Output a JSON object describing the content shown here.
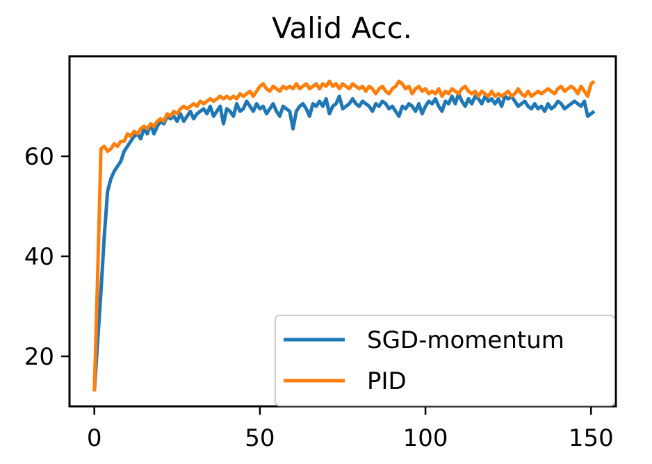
{
  "chart_data": {
    "type": "line",
    "title": "Valid Acc.",
    "xlabel": "",
    "ylabel": "",
    "xlim": [
      -7.5,
      157.5
    ],
    "ylim": [
      10,
      80
    ],
    "xticks": [
      0,
      50,
      100,
      150
    ],
    "yticks": [
      20,
      40,
      60
    ],
    "grid": false,
    "legend_position": "lower-right",
    "colors": {
      "SGD-momentum": "#1f77b4",
      "PID": "#ff7f0e"
    },
    "series": [
      {
        "name": "SGD-momentum",
        "values": [
          13.0,
          23.0,
          33.0,
          44.0,
          53.0,
          55.5,
          57.0,
          58.0,
          59.0,
          61.0,
          62.0,
          63.0,
          64.0,
          64.5,
          63.5,
          65.5,
          64.5,
          66.5,
          64.5,
          66.0,
          67.0,
          66.5,
          68.0,
          67.5,
          68.0,
          67.0,
          68.5,
          67.0,
          68.0,
          69.0,
          67.5,
          68.5,
          69.0,
          69.5,
          68.5,
          70.0,
          68.0,
          69.0,
          70.0,
          66.5,
          69.5,
          69.0,
          68.0,
          70.5,
          69.0,
          69.5,
          71.0,
          70.0,
          69.0,
          70.5,
          69.5,
          70.0,
          68.5,
          69.5,
          70.5,
          69.0,
          68.0,
          70.0,
          69.5,
          69.0,
          65.5,
          69.0,
          70.0,
          70.5,
          69.5,
          68.0,
          70.5,
          70.0,
          71.0,
          70.0,
          71.5,
          68.5,
          70.0,
          70.5,
          72.0,
          69.5,
          70.0,
          70.5,
          71.5,
          70.5,
          70.0,
          71.0,
          70.5,
          70.0,
          69.0,
          70.5,
          70.0,
          71.0,
          70.5,
          69.5,
          70.0,
          69.0,
          68.0,
          70.0,
          69.5,
          70.5,
          70.0,
          69.0,
          70.5,
          68.5,
          70.0,
          71.0,
          70.5,
          71.5,
          70.0,
          69.0,
          71.0,
          70.5,
          72.0,
          70.5,
          72.5,
          71.0,
          70.0,
          71.5,
          70.5,
          72.0,
          71.5,
          70.5,
          72.0,
          71.0,
          71.5,
          70.5,
          71.5,
          70.0,
          72.0,
          71.5,
          72.0,
          71.0,
          70.0,
          70.5,
          71.0,
          70.0,
          69.5,
          70.5,
          69.5,
          70.0,
          69.0,
          70.5,
          69.5,
          70.0,
          71.0,
          70.5,
          69.5,
          70.0,
          70.5,
          71.0,
          70.5,
          70.0,
          71.0,
          68.0,
          68.5,
          69.0
        ]
      },
      {
        "name": "PID",
        "values": [
          13.0,
          36.0,
          61.5,
          62.0,
          61.0,
          61.5,
          62.5,
          62.0,
          63.0,
          63.0,
          64.5,
          64.0,
          65.0,
          64.5,
          65.5,
          66.0,
          65.5,
          66.5,
          66.0,
          67.0,
          67.5,
          67.0,
          68.5,
          68.0,
          69.0,
          68.5,
          69.5,
          70.0,
          69.5,
          70.0,
          70.5,
          70.0,
          71.0,
          70.5,
          71.0,
          71.5,
          71.0,
          71.5,
          72.0,
          71.5,
          72.0,
          71.5,
          72.0,
          71.5,
          72.5,
          72.0,
          72.5,
          73.0,
          72.0,
          73.0,
          74.0,
          74.5,
          73.5,
          73.0,
          74.0,
          73.5,
          73.0,
          74.0,
          73.5,
          74.0,
          73.5,
          74.5,
          73.5,
          74.0,
          74.5,
          73.5,
          74.0,
          74.5,
          73.5,
          74.5,
          74.0,
          75.0,
          74.0,
          74.5,
          73.5,
          74.5,
          74.0,
          73.5,
          74.5,
          74.0,
          73.5,
          74.0,
          73.0,
          74.0,
          73.5,
          72.5,
          73.5,
          74.0,
          73.0,
          72.5,
          73.5,
          74.0,
          75.0,
          74.5,
          73.5,
          74.0,
          72.5,
          73.5,
          74.0,
          73.0,
          73.5,
          72.5,
          73.0,
          72.5,
          73.5,
          72.0,
          73.0,
          72.5,
          73.5,
          73.0,
          72.5,
          73.5,
          74.0,
          73.0,
          72.5,
          73.0,
          72.0,
          73.0,
          72.5,
          72.0,
          73.0,
          72.0,
          72.5,
          72.0,
          72.5,
          73.0,
          72.0,
          72.5,
          73.5,
          72.5,
          72.0,
          73.0,
          72.0,
          72.5,
          73.0,
          72.5,
          73.0,
          73.5,
          73.0,
          72.5,
          73.5,
          74.0,
          73.0,
          73.5,
          74.0,
          73.5,
          72.5,
          74.0,
          73.0,
          72.0,
          74.5,
          75.0
        ]
      }
    ]
  }
}
